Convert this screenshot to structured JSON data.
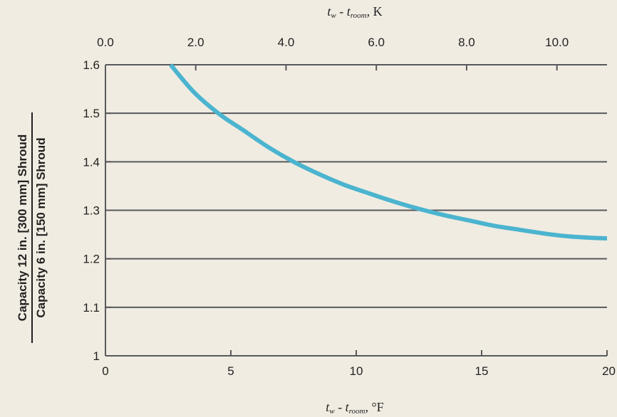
{
  "chart_data": {
    "type": "line",
    "title": "",
    "xlabel": "t_w - t_room, °F",
    "xlabel_parts": {
      "t1": "t",
      "s1": "w",
      "mid": " - ",
      "t2": "t",
      "s2": "room",
      "unit": ", °F"
    },
    "x2label": "t_w - t_room, K",
    "x2label_parts": {
      "t1": "t",
      "s1": "w",
      "mid": " - ",
      "t2": "t",
      "s2": "room",
      "unit": ", K"
    },
    "ylabel_numerator": "Capacity 12 in. [300 mm] Shroud",
    "ylabel_denominator": "Capacity 6 in. [150 mm] Shroud",
    "xlim": [
      0,
      20
    ],
    "ylim": [
      1.0,
      1.6
    ],
    "x2lim": [
      0,
      11.11
    ],
    "xticks": [
      0,
      5,
      10,
      15,
      20
    ],
    "xtick_labels": [
      "0",
      "5",
      "10",
      "15",
      "20"
    ],
    "x2ticks": [
      0,
      2,
      4,
      6,
      8,
      10
    ],
    "x2tick_labels": [
      "0.0",
      "2.0",
      "4.0",
      "6.0",
      "8.0",
      "10.0"
    ],
    "yticks": [
      1.0,
      1.1,
      1.2,
      1.3,
      1.4,
      1.5,
      1.6
    ],
    "ytick_labels": [
      "1",
      "1.1",
      "1.2",
      "1.3",
      "1.4",
      "1.5",
      "1.6"
    ],
    "grid": true,
    "series_color": "#4bb4cf",
    "series": [
      {
        "x": [
          2.6,
          3.5,
          4.5,
          5.5,
          6.5,
          7.5,
          8.5,
          9.5,
          10.5,
          11.5,
          12.5,
          13.5,
          14.5,
          15.5,
          16.5,
          17.5,
          18.5,
          19.5,
          20.0
        ],
        "y": [
          1.6,
          1.545,
          1.5,
          1.465,
          1.43,
          1.4,
          1.375,
          1.353,
          1.335,
          1.318,
          1.303,
          1.29,
          1.279,
          1.268,
          1.26,
          1.252,
          1.246,
          1.243,
          1.242
        ]
      }
    ]
  }
}
